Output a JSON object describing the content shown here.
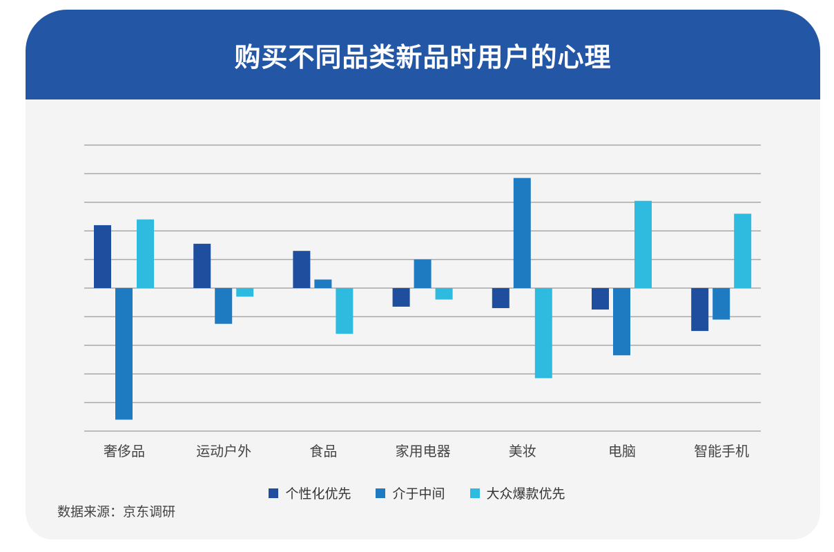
{
  "title": "购买不同品类新品时用户的心理",
  "source": "数据来源：京东调研",
  "chart_data": {
    "type": "bar",
    "title": "购买不同品类新品时用户的心理",
    "categories": [
      "奢侈品",
      "运动户外",
      "食品",
      "家用电器",
      "美妆",
      "电脑",
      "智能手机"
    ],
    "series": [
      {
        "name": "个性化优先",
        "color": "#1f4e9e",
        "values": [
          2.2,
          1.55,
          1.3,
          -0.65,
          -0.7,
          -0.75,
          -1.5
        ]
      },
      {
        "name": "介于中间",
        "color": "#1e7bc2",
        "values": [
          -4.6,
          -1.25,
          0.3,
          1.0,
          3.85,
          -2.35,
          -1.1
        ]
      },
      {
        "name": "大众爆款优先",
        "color": "#2fbadf",
        "values": [
          2.4,
          -0.3,
          -1.6,
          -0.4,
          -3.15,
          3.05,
          2.6
        ]
      }
    ],
    "ylim": [
      -5,
      5
    ],
    "grid": true,
    "y_tick_labels_shown": false,
    "legend_position": "bottom"
  }
}
